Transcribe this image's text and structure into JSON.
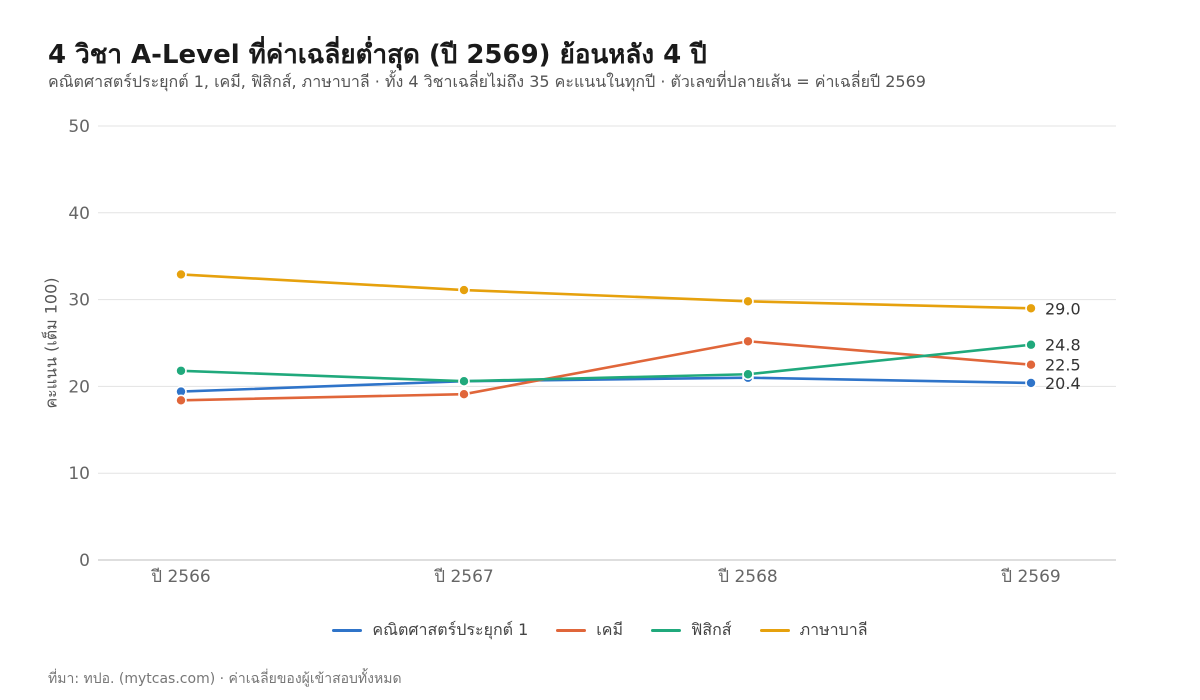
{
  "chart_data": {
    "type": "line",
    "title": "4 วิชา A-Level ที่ค่าเฉลี่ยต่ำสุด (ปี 2569) ย้อนหลัง 4 ปี",
    "subtitle": "คณิตศาสตร์ประยุกต์ 1, เคมี, ฟิสิกส์, ภาษาบาลี · ทั้ง 4 วิชาเฉลี่ยไม่ถึง 35 คะแนนในทุกปี · ตัวเลขที่ปลายเส้น = ค่าเฉลี่ยปี 2569",
    "ylabel": "คะแนน (เต็ม 100)",
    "xlabel": "",
    "categories": [
      "ปี 2566",
      "ปี 2567",
      "ปี 2568",
      "ปี 2569"
    ],
    "ylim": [
      0,
      50
    ],
    "yticks": [
      0,
      10,
      20,
      30,
      40,
      50
    ],
    "grid": true,
    "legend_position": "bottom",
    "series": [
      {
        "name": "คณิตศาสตร์ประยุกต์ 1",
        "color": "#2f74c9",
        "values": [
          19.4,
          20.6,
          21.0,
          20.4
        ],
        "end_label": "20.4"
      },
      {
        "name": "เคมี",
        "color": "#e0663a",
        "values": [
          18.4,
          19.1,
          25.2,
          22.5
        ],
        "end_label": "22.5"
      },
      {
        "name": "ฟิสิกส์",
        "color": "#20a97c",
        "values": [
          21.8,
          20.6,
          21.4,
          24.8
        ],
        "end_label": "24.8"
      },
      {
        "name": "ภาษาบาลี",
        "color": "#e6a10d",
        "values": [
          32.9,
          31.1,
          29.8,
          29.0
        ],
        "end_label": "29.0"
      }
    ],
    "source": "ที่มา: ทปอ. (mytcas.com) · ค่าเฉลี่ยของผู้เข้าสอบทั้งหมด"
  }
}
